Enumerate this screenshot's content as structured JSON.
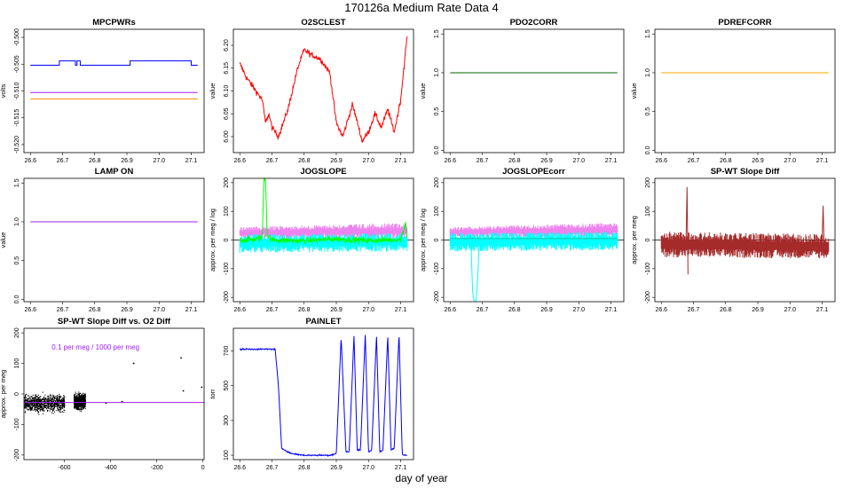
{
  "figure": {
    "title": "170126a   Medium Rate Data 4",
    "xlabel": "day of year"
  },
  "chart_data": [
    {
      "id": "mpcpwrs",
      "type": "line",
      "title": "MPCPWRs",
      "ylabel": "volts",
      "xlim": [
        26.58,
        27.14
      ],
      "ylim": [
        -0.5215,
        -0.4985
      ],
      "xticks": [
        26.6,
        26.7,
        26.8,
        26.9,
        27.0,
        27.1
      ],
      "xtick_labels": [
        "26.6",
        "26.7",
        "26.8",
        "26.9",
        "27.0",
        "27.1"
      ],
      "yticks": [
        -0.52,
        -0.515,
        -0.51,
        -0.505,
        -0.5
      ],
      "ytick_labels": [
        "-0.520",
        "-0.515",
        "-0.510",
        "-0.505",
        "-0.500"
      ],
      "series": [
        {
          "color": "#0000ff",
          "kind": "step",
          "x": [
            26.6,
            26.69,
            26.69,
            26.74,
            26.74,
            26.745,
            26.745,
            26.755,
            26.755,
            26.91,
            26.91,
            27.1,
            27.1,
            27.12
          ],
          "y": [
            -0.5052,
            -0.5052,
            -0.5044,
            -0.5044,
            -0.5052,
            -0.5052,
            -0.5044,
            -0.5044,
            -0.5052,
            -0.5052,
            -0.5044,
            -0.5044,
            -0.5052,
            -0.5052
          ]
        },
        {
          "color": "#a020f0",
          "kind": "line",
          "x": [
            26.6,
            27.12
          ],
          "y": [
            -0.5103,
            -0.5103
          ]
        },
        {
          "color": "#ff8c00",
          "kind": "line",
          "x": [
            26.6,
            27.12
          ],
          "y": [
            -0.5115,
            -0.5115
          ]
        }
      ]
    },
    {
      "id": "o2sclest",
      "type": "line",
      "title": "O2SCLEST",
      "ylabel": "value",
      "xlim": [
        26.58,
        27.14
      ],
      "ylim": [
        5.965,
        6.235
      ],
      "xticks": [
        26.6,
        26.7,
        26.8,
        26.9,
        27.0,
        27.1
      ],
      "xtick_labels": [
        "26.6",
        "26.7",
        "26.8",
        "26.9",
        "27.0",
        "27.1"
      ],
      "yticks": [
        6.0,
        6.05,
        6.1,
        6.15,
        6.2
      ],
      "ytick_labels": [
        "6.00",
        "6.05",
        "6.10",
        "6.15",
        "6.20"
      ],
      "series": [
        {
          "color": "#ff0000",
          "kind": "noisy",
          "noise": 0.006,
          "x": [
            26.6,
            26.62,
            26.65,
            26.67,
            26.68,
            26.69,
            26.7,
            26.72,
            26.75,
            26.78,
            26.8,
            26.82,
            26.85,
            26.88,
            26.9,
            26.92,
            26.95,
            26.97,
            26.98,
            27.0,
            27.02,
            27.04,
            27.06,
            27.08,
            27.1,
            27.12
          ],
          "y": [
            6.16,
            6.13,
            6.1,
            6.08,
            6.03,
            6.05,
            6.02,
            6.0,
            6.06,
            6.15,
            6.19,
            6.18,
            6.17,
            6.14,
            6.03,
            6.0,
            6.07,
            6.02,
            5.99,
            6.01,
            6.05,
            6.02,
            6.06,
            6.01,
            6.08,
            6.22
          ]
        }
      ]
    },
    {
      "id": "pdo2corr",
      "type": "line",
      "title": "PDO2CORR",
      "ylabel": "value",
      "xlim": [
        26.58,
        27.14
      ],
      "ylim": [
        -0.03,
        1.56
      ],
      "xticks": [
        26.6,
        26.7,
        26.8,
        26.9,
        27.0,
        27.1
      ],
      "xtick_labels": [
        "26.6",
        "26.7",
        "26.8",
        "26.9",
        "27.0",
        "27.1"
      ],
      "yticks": [
        0.0,
        0.5,
        1.0,
        1.5
      ],
      "ytick_labels": [
        "0.0",
        "0.5",
        "1.0",
        "1.5"
      ],
      "series": [
        {
          "color": "#006400",
          "kind": "line",
          "x": [
            26.6,
            27.12
          ],
          "y": [
            1.0,
            1.0
          ]
        }
      ]
    },
    {
      "id": "pdrefcorr",
      "type": "line",
      "title": "PDREFCORR",
      "ylabel": "value",
      "xlim": [
        26.58,
        27.14
      ],
      "ylim": [
        -0.03,
        1.56
      ],
      "xticks": [
        26.6,
        26.7,
        26.8,
        26.9,
        27.0,
        27.1
      ],
      "xtick_labels": [
        "26.6",
        "26.7",
        "26.8",
        "26.9",
        "27.0",
        "27.1"
      ],
      "yticks": [
        0.0,
        0.5,
        1.0,
        1.5
      ],
      "ytick_labels": [
        "0.0",
        "0.5",
        "1.0",
        "1.5"
      ],
      "series": [
        {
          "color": "#ffa500",
          "kind": "line",
          "x": [
            26.6,
            27.12
          ],
          "y": [
            1.0,
            1.0
          ]
        }
      ]
    },
    {
      "id": "lampon",
      "type": "line",
      "title": "LAMP ON",
      "ylabel": "value",
      "xlim": [
        26.58,
        27.14
      ],
      "ylim": [
        -0.03,
        1.56
      ],
      "xticks": [
        26.6,
        26.7,
        26.8,
        26.9,
        27.0,
        27.1
      ],
      "xtick_labels": [
        "26.6",
        "26.7",
        "26.8",
        "26.9",
        "27.0",
        "27.1"
      ],
      "yticks": [
        0.0,
        0.5,
        1.0,
        1.5
      ],
      "ytick_labels": [
        "0.0",
        "0.5",
        "1.0",
        "1.5"
      ],
      "series": [
        {
          "color": "#a020f0",
          "kind": "line",
          "x": [
            26.6,
            27.12
          ],
          "y": [
            1.0,
            1.0
          ]
        }
      ]
    },
    {
      "id": "jogslope",
      "type": "line",
      "title": "JOGSLOPE",
      "ylabel": "approx. per meg / log",
      "xlim": [
        26.58,
        27.14
      ],
      "ylim": [
        -215,
        215
      ],
      "xticks": [
        26.6,
        26.7,
        26.8,
        26.9,
        27.0,
        27.1
      ],
      "xtick_labels": [
        "26.6",
        "26.7",
        "26.8",
        "26.9",
        "27.0",
        "27.1"
      ],
      "yticks": [
        -200,
        -100,
        0,
        100,
        200
      ],
      "ytick_labels": [
        "-200",
        "-100",
        "0",
        "100",
        "200"
      ],
      "hline": {
        "y": 0,
        "color": "#000000"
      },
      "series": [
        {
          "color": "#ee82ee",
          "kind": "band",
          "x": [
            26.6,
            27.12
          ],
          "low": [
            5,
            5
          ],
          "high": [
            45,
            60
          ]
        },
        {
          "color": "#00ffff",
          "kind": "band",
          "x": [
            26.6,
            27.12
          ],
          "low": [
            -45,
            -40
          ],
          "high": [
            20,
            25
          ]
        },
        {
          "color": "#00ff00",
          "kind": "noisy",
          "noise": 10,
          "x": [
            26.6,
            26.65,
            26.67,
            26.675,
            26.68,
            26.685,
            26.7,
            26.8,
            26.9,
            27.0,
            27.1,
            27.115,
            27.12
          ],
          "y": [
            0,
            2,
            10,
            215,
            215,
            20,
            0,
            -3,
            4,
            -2,
            2,
            60,
            5
          ]
        }
      ]
    },
    {
      "id": "jogslopecorr",
      "type": "line",
      "title": "JOGSLOPEcorr",
      "ylabel": "approx. per meg / log",
      "xlim": [
        26.58,
        27.14
      ],
      "ylim": [
        -215,
        215
      ],
      "xticks": [
        26.6,
        26.7,
        26.8,
        26.9,
        27.0,
        27.1
      ],
      "xtick_labels": [
        "26.6",
        "26.7",
        "26.8",
        "26.9",
        "27.0",
        "27.1"
      ],
      "yticks": [
        -200,
        -100,
        0,
        100,
        200
      ],
      "ytick_labels": [
        "-200",
        "-100",
        "0",
        "100",
        "200"
      ],
      "hline": {
        "y": 0,
        "color": "#000000"
      },
      "series": [
        {
          "color": "#ee82ee",
          "kind": "band",
          "x": [
            26.6,
            27.12
          ],
          "low": [
            10,
            10
          ],
          "high": [
            45,
            60
          ]
        },
        {
          "color": "#00ffff",
          "kind": "band",
          "x": [
            26.6,
            27.12
          ],
          "low": [
            -40,
            -35
          ],
          "high": [
            25,
            30
          ]
        },
        {
          "color": "#00ffff",
          "kind": "line",
          "x": [
            26.665,
            26.67,
            26.675,
            26.68,
            26.685,
            26.69
          ],
          "y": [
            -20,
            -180,
            -215,
            -215,
            -150,
            -20
          ]
        },
        {
          "color": "#00cc99",
          "kind": "line",
          "x": [
            26.6,
            27.12
          ],
          "y": [
            5,
            5
          ]
        }
      ]
    },
    {
      "id": "spwt",
      "type": "line",
      "title": "SP-WT Slope Diff",
      "ylabel": "approx. per meg",
      "xlim": [
        26.58,
        27.14
      ],
      "ylim": [
        -215,
        215
      ],
      "xticks": [
        26.6,
        26.7,
        26.8,
        26.9,
        27.0,
        27.1
      ],
      "xtick_labels": [
        "26.6",
        "26.7",
        "26.8",
        "26.9",
        "27.0",
        "27.1"
      ],
      "yticks": [
        -200,
        -100,
        0,
        100,
        200
      ],
      "ytick_labels": [
        "-200",
        "-100",
        "0",
        "100",
        "200"
      ],
      "hline": {
        "y": 0,
        "color": "#000000"
      },
      "series": [
        {
          "color": "#a52a2a",
          "kind": "band",
          "x": [
            26.6,
            27.12
          ],
          "low": [
            -60,
            -65
          ],
          "high": [
            30,
            20
          ]
        },
        {
          "color": "#a52a2a",
          "kind": "line",
          "x": [
            26.677,
            26.68,
            26.683
          ],
          "y": [
            0,
            185,
            -120
          ]
        },
        {
          "color": "#a52a2a",
          "kind": "line",
          "x": [
            27.1,
            27.103,
            27.106
          ],
          "y": [
            0,
            120,
            -20
          ]
        }
      ]
    },
    {
      "id": "spwtvso2",
      "type": "scatter",
      "title": "SP-WT Slope Diff vs. O2 Diff",
      "ylabel": "approx. per meg",
      "xlim": [
        -775,
        5
      ],
      "ylim": [
        -215,
        215
      ],
      "xticks": [
        -600,
        -400,
        -200,
        0
      ],
      "xtick_labels": [
        "-600",
        "-400",
        "-200",
        "0"
      ],
      "yticks": [
        -200,
        -100,
        0,
        100,
        200
      ],
      "ytick_labels": [
        "-200",
        "-100",
        "0",
        "100",
        "200"
      ],
      "annotation": {
        "text": "0.1 per meg / 1000 per meg",
        "x": -465,
        "y": 145,
        "color": "#a020f0"
      },
      "fit_line": {
        "color": "#a020f0",
        "x": [
          -775,
          5
        ],
        "y": [
          -28,
          -28
        ]
      },
      "clusters": [
        {
          "x_range": [
            -775,
            -600
          ],
          "y_center": -30,
          "y_spread": 25
        },
        {
          "x_range": [
            -560,
            -510
          ],
          "y_center": -25,
          "y_spread": 22
        }
      ],
      "points": {
        "x": [
          -300,
          -95,
          -85,
          -5,
          -420,
          -350
        ],
        "y": [
          100,
          118,
          10,
          22,
          -30,
          -25
        ]
      }
    },
    {
      "id": "painlet",
      "type": "line",
      "title": "PAINLET",
      "ylabel": "torr",
      "xlim": [
        26.58,
        27.14
      ],
      "ylim": [
        75,
        830
      ],
      "xticks": [
        26.6,
        26.7,
        26.8,
        26.9,
        27.0,
        27.1
      ],
      "xtick_labels": [
        "26.6",
        "26.7",
        "26.8",
        "26.9",
        "27.0",
        "27.1"
      ],
      "yticks": [
        100,
        300,
        500,
        700
      ],
      "ytick_labels": [
        "100",
        "300",
        "500",
        "700"
      ],
      "series": [
        {
          "color": "#0000ff",
          "kind": "noisy",
          "noise": 4,
          "x": [
            26.6,
            26.71,
            26.72,
            26.73,
            26.74,
            26.76,
            26.8,
            26.88,
            26.9,
            26.915,
            26.93,
            26.94,
            26.955,
            26.965,
            26.975,
            26.99,
            27.0,
            27.01,
            27.025,
            27.035,
            27.045,
            27.06,
            27.07,
            27.08,
            27.095,
            27.105,
            27.11,
            27.12
          ],
          "y": [
            710,
            710,
            500,
            140,
            130,
            110,
            100,
            100,
            110,
            780,
            120,
            120,
            790,
            130,
            130,
            790,
            120,
            130,
            790,
            120,
            130,
            790,
            130,
            140,
            800,
            105,
            100,
            100
          ]
        }
      ]
    }
  ]
}
